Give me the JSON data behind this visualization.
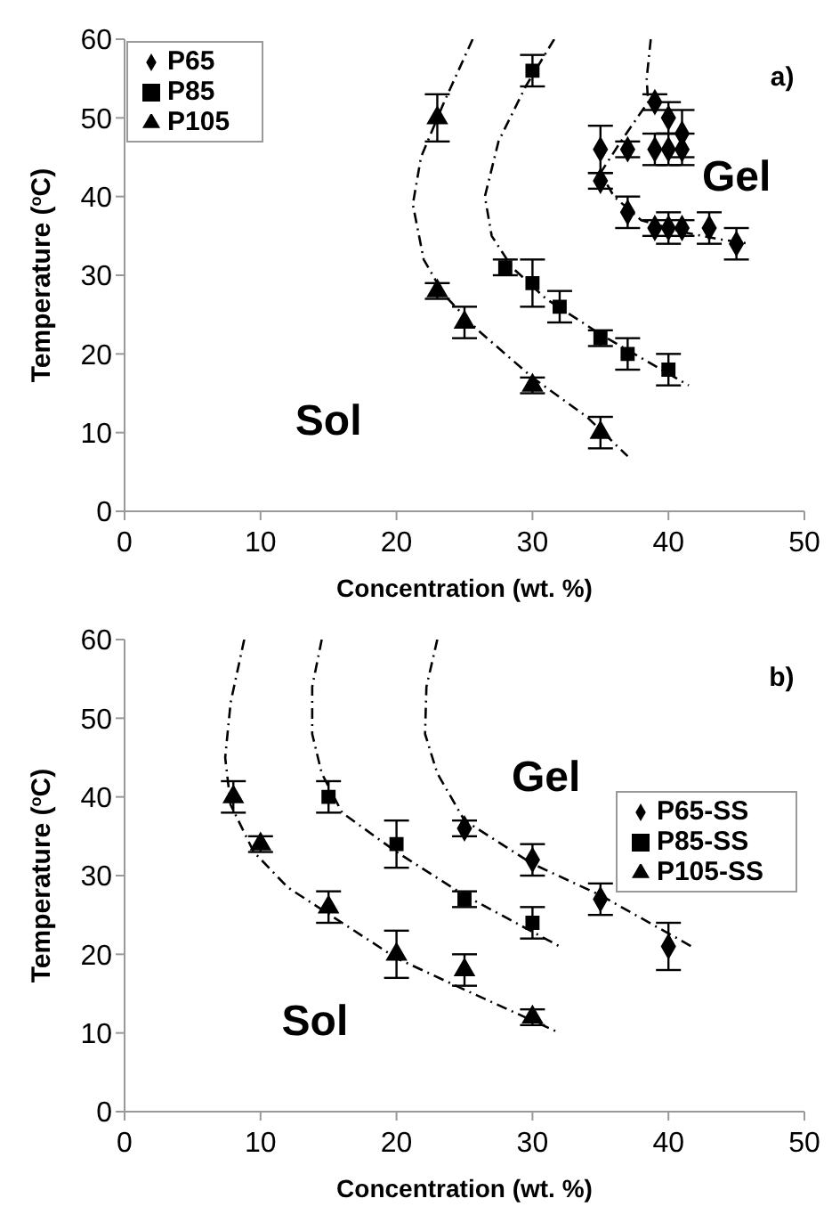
{
  "chart_data": [
    {
      "type": "scatter",
      "xlabel": "Concentration (wt. %)",
      "ylabel": "Temperature ($^{o}$C)",
      "annotations": [
        "a)",
        "Gel",
        "Sol"
      ],
      "xlim": [
        0,
        50
      ],
      "xticks": [
        0,
        10,
        20,
        30,
        40,
        50
      ],
      "ylim": [
        0,
        60
      ],
      "yticks": [
        0,
        10,
        20,
        30,
        40,
        50,
        60
      ],
      "grid": false,
      "legend": "top left",
      "series": [
        {
          "name": "P65",
          "color": "#000000",
          "marker": "diamond",
          "x": [
            39,
            40,
            41,
            35,
            37,
            39,
            40,
            41,
            35,
            37,
            39,
            40,
            41,
            43,
            45
          ],
          "values": [
            52,
            50,
            48,
            46,
            46,
            46,
            46,
            46,
            42,
            38,
            36,
            36,
            36,
            36,
            34
          ],
          "errors": [
            1,
            2,
            3,
            3,
            1,
            2,
            2,
            2,
            1,
            2,
            1,
            2,
            1,
            2,
            2
          ]
        },
        {
          "name": "P85",
          "color": "#000000",
          "marker": "square",
          "x": [
            30,
            28,
            30,
            32,
            35,
            37,
            40
          ],
          "values": [
            56,
            31,
            29,
            26,
            22,
            20,
            18
          ],
          "errors": [
            2,
            1,
            3,
            2,
            1,
            2,
            2
          ]
        },
        {
          "name": "P105",
          "color": "#000000",
          "marker": "triangle",
          "x": [
            23,
            23,
            25,
            30,
            35
          ],
          "values": [
            50,
            28,
            24,
            16,
            10
          ],
          "errors": [
            3,
            1,
            2,
            1,
            2
          ]
        },
        {
          "type": "line",
          "color": "#000000",
          "line_style": "dashed",
          "x": [
            38.7,
            38.4,
            38.5,
            36.5,
            35,
            36,
            38,
            41,
            44,
            46
          ],
          "values": [
            60,
            55,
            52,
            47,
            43,
            40,
            37,
            35.5,
            34.5,
            34
          ]
        },
        {
          "type": "line",
          "color": "#000000",
          "line_style": "dashed",
          "x": [
            31.6,
            29.5,
            27.5,
            26.5,
            27,
            28.5,
            31,
            35,
            39,
            41.5
          ],
          "values": [
            60,
            54,
            47,
            40,
            35,
            31,
            27,
            22.5,
            18.5,
            16
          ]
        },
        {
          "type": "line",
          "color": "#000000",
          "line_style": "dashed",
          "x": [
            25.6,
            23.5,
            21.8,
            21.2,
            22,
            23.5,
            26,
            30,
            34,
            37
          ],
          "values": [
            60,
            52,
            45,
            39,
            32,
            27.5,
            23,
            17,
            12,
            7
          ]
        }
      ]
    },
    {
      "type": "scatter",
      "xlabel": "Concentration (wt. %)",
      "ylabel": "Temperature ($^{o}$C)",
      "annotations": [
        "b)",
        "Gel",
        "Sol"
      ],
      "xlim": [
        0,
        50
      ],
      "xticks": [
        0,
        10,
        20,
        30,
        40,
        50
      ],
      "ylim": [
        0,
        60
      ],
      "yticks": [
        0,
        10,
        20,
        30,
        40,
        50,
        60
      ],
      "grid": false,
      "legend": "right",
      "series": [
        {
          "name": "P65-SS",
          "color": "#000000",
          "marker": "diamond",
          "x": [
            25,
            30,
            35,
            40
          ],
          "values": [
            36,
            32,
            27,
            21
          ],
          "errors": [
            1,
            2,
            2,
            3
          ]
        },
        {
          "name": "P85-SS",
          "color": "#000000",
          "marker": "square",
          "x": [
            15,
            20,
            25,
            30
          ],
          "values": [
            40,
            34,
            27,
            24
          ],
          "errors": [
            2,
            3,
            1,
            2
          ]
        },
        {
          "name": "P105-SS",
          "color": "#000000",
          "marker": "triangle",
          "x": [
            8,
            10,
            15,
            20,
            25,
            30
          ],
          "values": [
            40,
            34,
            26,
            20,
            18,
            12
          ],
          "errors": [
            2,
            1,
            2,
            3,
            2,
            1
          ]
        },
        {
          "type": "line",
          "color": "#000000",
          "line_style": "dashed",
          "x": [
            23,
            22.2,
            22.1,
            23,
            25,
            30,
            35,
            41.7
          ],
          "values": [
            60,
            54,
            48,
            43,
            37,
            31.5,
            27.5,
            21
          ]
        },
        {
          "type": "line",
          "color": "#000000",
          "line_style": "dashed",
          "x": [
            14.5,
            13.8,
            13.8,
            14.5,
            16,
            20,
            25,
            32
          ],
          "values": [
            60,
            54,
            48,
            43,
            38,
            33,
            27.5,
            21
          ]
        },
        {
          "type": "line",
          "color": "#000000",
          "line_style": "dashed",
          "x": [
            8.8,
            7.8,
            7.4,
            7.8,
            9.5,
            12,
            16,
            20,
            25,
            32
          ],
          "values": [
            60,
            52,
            45,
            39,
            33,
            28.5,
            24,
            19.5,
            15.5,
            10
          ]
        }
      ]
    }
  ]
}
